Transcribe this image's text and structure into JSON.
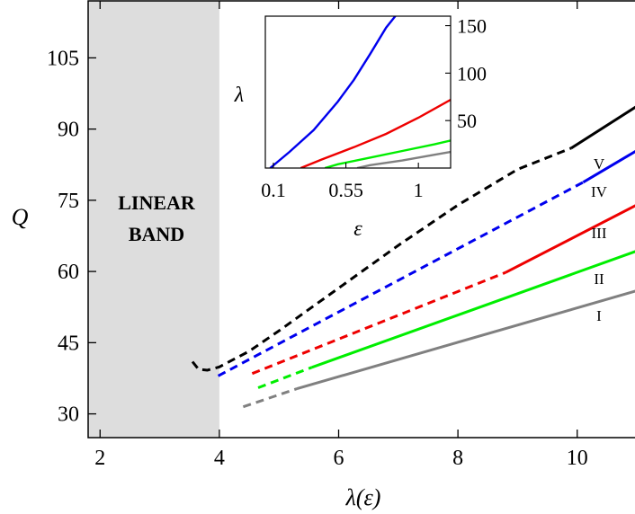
{
  "chart_data": [
    {
      "type": "line",
      "xlabel": "λ(ε)",
      "ylabel": "Q",
      "xlim": [
        1.8,
        11.15
      ],
      "ylim": [
        25,
        117
      ],
      "xticks": [
        "2",
        "4",
        "6",
        "8",
        "10"
      ],
      "yticks": [
        "30",
        "45",
        "60",
        "75",
        "90",
        "105"
      ],
      "shaded_region": {
        "x": [
          1.8,
          4.0
        ],
        "label_lines": [
          "LINEAR",
          "BAND"
        ],
        "color": "#dddddd"
      },
      "series": [
        {
          "name": "I",
          "color": "#808080",
          "dashed": {
            "x": [
              4.4,
              5.3
            ],
            "y": [
              31.5,
              35.3
            ]
          },
          "solid": {
            "x": [
              5.3,
              11.15
            ],
            "y": [
              35.3,
              56.5
            ]
          }
        },
        {
          "name": "II",
          "color": "#00ee00",
          "dashed": {
            "x": [
              4.65,
              5.55
            ],
            "y": [
              35.5,
              39.8
            ]
          },
          "solid": {
            "x": [
              5.55,
              11.15
            ],
            "y": [
              39.8,
              65.0
            ]
          }
        },
        {
          "name": "III",
          "color": "#ee0000",
          "dashed": {
            "x": [
              4.55,
              8.8
            ],
            "y": [
              38.5,
              59.8
            ]
          },
          "solid": {
            "x": [
              8.8,
              11.15
            ],
            "y": [
              59.8,
              75.0
            ]
          }
        },
        {
          "name": "IV",
          "color": "#0000ee",
          "dashed": {
            "x": [
              3.98,
              10.1
            ],
            "y": [
              38.0,
              78.8
            ]
          },
          "solid": {
            "x": [
              10.1,
              11.15
            ],
            "y": [
              78.8,
              86.6
            ]
          }
        },
        {
          "name": "V",
          "color": "#000000",
          "dashed": {
            "x": [
              3.55,
              3.65,
              3.8,
              4.0,
              4.5,
              5.0,
              6.0,
              7.0,
              8.0,
              9.0,
              9.9
            ],
            "y": [
              41.0,
              39.4,
              39.2,
              39.9,
              43.2,
              47.5,
              56.5,
              65.5,
              74.0,
              81.5,
              86.0
            ]
          },
          "solid": {
            "x": [
              9.9,
              11.15
            ],
            "y": [
              86.0,
              96.0
            ]
          }
        }
      ]
    },
    {
      "type": "line",
      "xlabel": "ε",
      "ylabel": "λ",
      "xlim": [
        0.05,
        1.2
      ],
      "ylim": [
        0,
        160
      ],
      "xticks": [
        "0.1",
        "0.55",
        "1"
      ],
      "yticks": [
        "50",
        "100",
        "150"
      ],
      "series": [
        {
          "color": "#808080",
          "x": [
            0.62,
            0.7,
            0.9,
            1.1,
            1.2
          ],
          "y": [
            0,
            3,
            8,
            14,
            17
          ]
        },
        {
          "color": "#00ee00",
          "x": [
            0.42,
            0.5,
            0.7,
            0.9,
            1.1,
            1.2
          ],
          "y": [
            0,
            4,
            11,
            18,
            25,
            29
          ]
        },
        {
          "color": "#ee0000",
          "x": [
            0.27,
            0.4,
            0.6,
            0.8,
            1.0,
            1.2
          ],
          "y": [
            0,
            9,
            22,
            36,
            53,
            72
          ]
        },
        {
          "color": "#0000ee",
          "x": [
            0.08,
            0.2,
            0.35,
            0.5,
            0.6,
            0.7,
            0.8,
            0.88
          ],
          "y": [
            0,
            17,
            40,
            70,
            93,
            120,
            148,
            165
          ]
        }
      ]
    }
  ]
}
